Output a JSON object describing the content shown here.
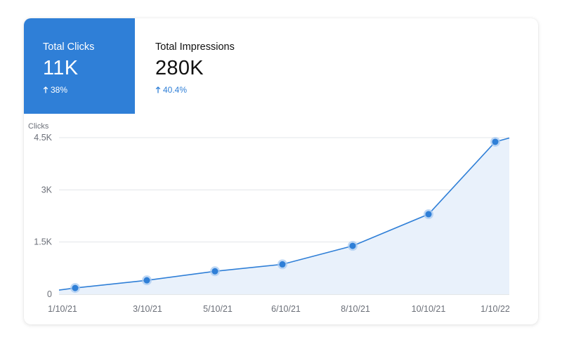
{
  "metrics": {
    "clicks": {
      "label": "Total Clicks",
      "value": "11K",
      "change": "38%"
    },
    "impressions": {
      "label": "Total Impressions",
      "value": "280K",
      "change": "40.4%"
    }
  },
  "colors": {
    "accent": "#2f7fd7",
    "line": "#2f7fd7",
    "area": "#e9f1fb",
    "grid": "#e3e5e9",
    "marker_halo": "#a9cbf1"
  },
  "chart_data": {
    "type": "area",
    "ylabel": "Clicks",
    "ylim": [
      0,
      4500
    ],
    "y_ticks": [
      {
        "value": 0,
        "label": "0"
      },
      {
        "value": 1500,
        "label": "1.5K"
      },
      {
        "value": 3000,
        "label": "3K"
      },
      {
        "value": 4500,
        "label": "4.5K"
      }
    ],
    "x_labels": [
      "1/10/21",
      "3/10/21",
      "5/10/21",
      "6/10/21",
      "8/10/21",
      "10/10/21",
      "1/10/22"
    ],
    "series": [
      {
        "values": [
          180,
          400,
          660,
          860,
          1390,
          2300,
          4380
        ]
      }
    ],
    "start_value": 120,
    "end_value": 4490,
    "grid": true,
    "legend": "none"
  }
}
